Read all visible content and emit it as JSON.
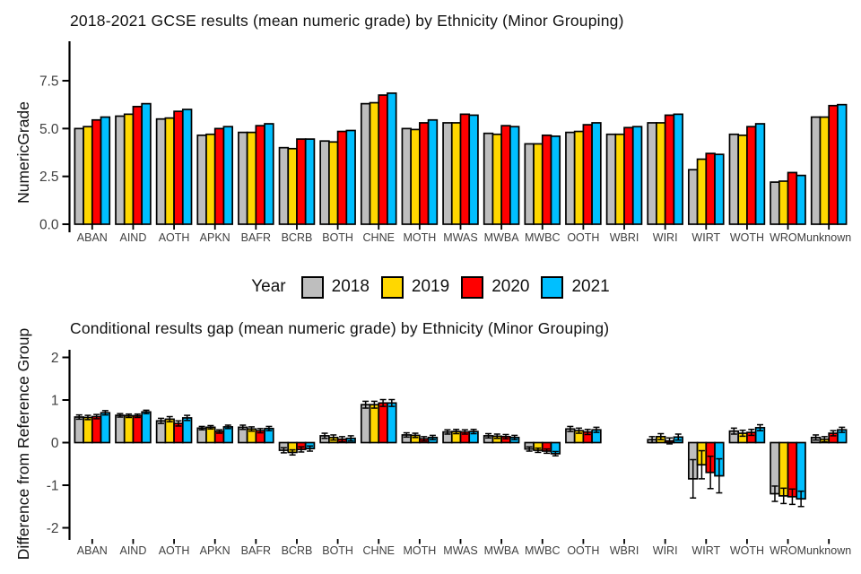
{
  "legend": {
    "title": "Year",
    "items": [
      {
        "label": "2018",
        "color": "#bebebe"
      },
      {
        "label": "2019",
        "color": "#ffd700"
      },
      {
        "label": "2020",
        "color": "#ff0000"
      },
      {
        "label": "2021",
        "color": "#00bfff"
      }
    ]
  },
  "colors": {
    "axis": "#000000",
    "tick_text": "#404040",
    "title_text": "#111111",
    "background": "#ffffff"
  },
  "chart_data": [
    {
      "type": "bar",
      "title": "2018-2021 GCSE results (mean numeric grade) by Ethnicity (Minor Grouping)",
      "ylabel": "NumericGrade",
      "xlabel": "",
      "ylim": [
        0,
        8.8
      ],
      "grid": false,
      "legend_position": "bottom",
      "yticks": [
        {
          "label": "0.0",
          "value": 0
        },
        {
          "label": "2.5",
          "value": 2.5
        },
        {
          "label": "5.0",
          "value": 5
        },
        {
          "label": "7.5",
          "value": 7.5
        }
      ],
      "categories": [
        "ABAN",
        "AIND",
        "AOTH",
        "APKN",
        "BAFR",
        "BCRB",
        "BOTH",
        "CHNE",
        "MOTH",
        "MWAS",
        "MWBA",
        "MWBC",
        "OOTH",
        "WBRI",
        "WIRI",
        "WIRT",
        "WOTH",
        "WROM",
        "unknown"
      ],
      "series": [
        {
          "name": "2018",
          "color": "#bebebe",
          "values": [
            5.0,
            5.65,
            5.5,
            4.65,
            4.8,
            4.0,
            4.35,
            6.3,
            5.0,
            5.3,
            4.75,
            4.2,
            4.8,
            4.7,
            5.3,
            2.85,
            4.7,
            2.2,
            5.6
          ]
        },
        {
          "name": "2019",
          "color": "#ffd700",
          "values": [
            5.1,
            5.75,
            5.55,
            4.7,
            4.8,
            3.95,
            4.3,
            6.35,
            4.95,
            5.3,
            4.7,
            4.2,
            4.85,
            4.7,
            5.3,
            3.4,
            4.65,
            2.25,
            5.6
          ]
        },
        {
          "name": "2020",
          "color": "#ff0000",
          "values": [
            5.45,
            6.15,
            5.9,
            5.0,
            5.15,
            4.45,
            4.85,
            6.75,
            5.3,
            5.75,
            5.15,
            4.65,
            5.2,
            5.05,
            5.7,
            3.7,
            5.1,
            2.7,
            6.2
          ]
        },
        {
          "name": "2021",
          "color": "#00bfff",
          "values": [
            5.6,
            6.3,
            6.0,
            5.1,
            5.25,
            4.45,
            4.9,
            6.85,
            5.45,
            5.7,
            5.1,
            4.6,
            5.3,
            5.1,
            5.75,
            3.65,
            5.25,
            2.55,
            6.25
          ]
        }
      ]
    },
    {
      "type": "bar",
      "title": "Conditional results gap (mean numeric grade) by Ethnicity (Minor Grouping)",
      "ylabel": "Difference from Reference Group",
      "xlabel": "",
      "ylim": [
        -2.3,
        2.2
      ],
      "grid": false,
      "error_bars": true,
      "reference_group": "WBRI",
      "yticks": [
        {
          "label": "-2",
          "value": -2
        },
        {
          "label": "-1",
          "value": -1
        },
        {
          "label": "0",
          "value": 0
        },
        {
          "label": "1",
          "value": 1
        },
        {
          "label": "2",
          "value": 2
        }
      ],
      "categories": [
        "ABAN",
        "AIND",
        "AOTH",
        "APKN",
        "BAFR",
        "BCRB",
        "BOTH",
        "CHNE",
        "MOTH",
        "MWAS",
        "MWBA",
        "MWBC",
        "OOTH",
        "WBRI",
        "WIRI",
        "WIRT",
        "WOTH",
        "WROM",
        "unknown"
      ],
      "series": [
        {
          "name": "2018",
          "color": "#bebebe",
          "values": [
            0.6,
            0.64,
            0.51,
            0.34,
            0.36,
            -0.18,
            0.16,
            0.89,
            0.18,
            0.25,
            0.16,
            -0.15,
            0.32,
            null,
            0.07,
            -0.85,
            0.27,
            -1.2,
            0.12
          ],
          "errors": [
            0.05,
            0.04,
            0.06,
            0.04,
            0.05,
            0.06,
            0.06,
            0.08,
            0.05,
            0.05,
            0.05,
            0.05,
            0.06,
            null,
            0.07,
            0.45,
            0.07,
            0.18,
            0.06
          ]
        },
        {
          "name": "2019",
          "color": "#ffd700",
          "values": [
            0.59,
            0.63,
            0.55,
            0.36,
            0.32,
            -0.23,
            0.12,
            0.89,
            0.17,
            0.26,
            0.15,
            -0.18,
            0.28,
            null,
            0.14,
            -0.52,
            0.22,
            -1.25,
            0.08
          ],
          "errors": [
            0.05,
            0.04,
            0.06,
            0.04,
            0.05,
            0.06,
            0.06,
            0.08,
            0.05,
            0.05,
            0.05,
            0.05,
            0.06,
            null,
            0.07,
            0.33,
            0.07,
            0.18,
            0.06
          ]
        },
        {
          "name": "2020",
          "color": "#ff0000",
          "values": [
            0.61,
            0.63,
            0.45,
            0.26,
            0.28,
            -0.16,
            0.08,
            0.93,
            0.09,
            0.25,
            0.14,
            -0.2,
            0.25,
            null,
            0.04,
            -0.7,
            0.24,
            -1.27,
            0.22
          ],
          "errors": [
            0.05,
            0.04,
            0.06,
            0.04,
            0.05,
            0.06,
            0.06,
            0.08,
            0.05,
            0.05,
            0.05,
            0.05,
            0.06,
            null,
            0.07,
            0.38,
            0.07,
            0.18,
            0.06
          ]
        },
        {
          "name": "2021",
          "color": "#00bfff",
          "values": [
            0.7,
            0.72,
            0.58,
            0.37,
            0.33,
            -0.14,
            0.1,
            0.93,
            0.12,
            0.26,
            0.12,
            -0.26,
            0.3,
            null,
            0.13,
            -0.78,
            0.35,
            -1.32,
            0.3
          ],
          "errors": [
            0.05,
            0.04,
            0.06,
            0.04,
            0.05,
            0.06,
            0.06,
            0.08,
            0.05,
            0.05,
            0.05,
            0.05,
            0.06,
            null,
            0.07,
            0.4,
            0.07,
            0.18,
            0.06
          ]
        }
      ]
    }
  ]
}
